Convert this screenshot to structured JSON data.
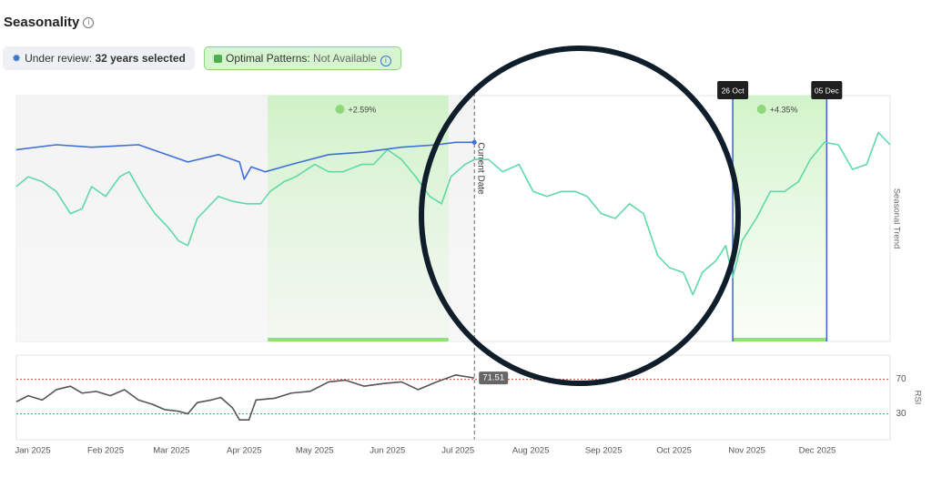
{
  "header": {
    "title": "Seasonality",
    "review_label": "Under review:",
    "review_value": "32 years selected",
    "patterns_label": "Optimal Patterns:",
    "patterns_value": "Not Available"
  },
  "chart_data": [
    {
      "type": "line",
      "y_label": "Seasonal Trend",
      "xlim": [
        -7,
        365
      ],
      "ylim": [
        0,
        100
      ],
      "current_date": 188,
      "current_date_label": "Current Date",
      "patterns": [
        {
          "start": 100,
          "end": 177,
          "change": 2.59,
          "change_label": "+2.59%"
        },
        {
          "start": 298,
          "end": 338,
          "start_label": "26 Oct",
          "end_label": "05 Dec",
          "change": 4.35,
          "change_label": "+4.35%"
        }
      ],
      "series": [
        {
          "color": "#5fd9a8",
          "x": [
            -7,
            -2,
            4,
            10,
            16,
            21,
            25,
            31,
            37,
            41,
            47,
            52,
            58,
            62,
            66,
            70,
            74,
            79,
            85,
            91,
            97,
            101,
            107,
            112,
            120,
            126,
            132,
            140,
            145,
            151,
            157,
            163,
            169,
            174,
            178,
            184,
            188,
            194,
            200,
            207,
            213,
            219,
            225,
            231,
            236,
            242,
            248,
            254,
            260,
            266,
            271,
            277,
            281,
            285,
            291,
            295,
            298,
            302,
            308,
            314,
            320,
            326,
            331,
            337,
            343,
            349,
            355,
            360,
            365
          ],
          "values": [
            63,
            67,
            65,
            61,
            52,
            54,
            63,
            59,
            67,
            69,
            59,
            52,
            46,
            41,
            39,
            50,
            54,
            59,
            57,
            56,
            56,
            61,
            65,
            67,
            72,
            69,
            69,
            72,
            72,
            78,
            74,
            67,
            59,
            56,
            67,
            72,
            74,
            74,
            69,
            72,
            61,
            59,
            61,
            61,
            59,
            52,
            50,
            56,
            52,
            35,
            30,
            28,
            19,
            28,
            33,
            39,
            26,
            41,
            50,
            61,
            61,
            65,
            74,
            81,
            80,
            70,
            72,
            85,
            80
          ]
        },
        {
          "color": "#3f6fd8",
          "x": [
            -7,
            10,
            25,
            45,
            66,
            79,
            88,
            90,
            93,
            99,
            110,
            126,
            141,
            157,
            172,
            180,
            188
          ],
          "values": [
            78,
            80,
            79,
            80,
            73,
            76,
            73,
            66,
            71,
            69,
            72,
            76,
            77,
            79,
            80,
            81,
            81
          ]
        }
      ]
    },
    {
      "type": "line",
      "y_label": "RSI",
      "xlim": [
        -7,
        365
      ],
      "ylim": [
        0,
        98
      ],
      "yticks": [
        30,
        70
      ],
      "tick_colors": [
        "#3cb44b",
        "#e0403a"
      ],
      "xticks": [
        {
          "value": 0,
          "label": "Jan 2025"
        },
        {
          "value": 31,
          "label": "Feb 2025"
        },
        {
          "value": 59,
          "label": "Mar 2025"
        },
        {
          "value": 90,
          "label": "Apr 2025"
        },
        {
          "value": 120,
          "label": "May 2025"
        },
        {
          "value": 151,
          "label": "Jun 2025"
        },
        {
          "value": 181,
          "label": "Jul 2025"
        },
        {
          "value": 212,
          "label": "Aug 2025"
        },
        {
          "value": 243,
          "label": "Sep 2025"
        },
        {
          "value": 273,
          "label": "Oct 2025"
        },
        {
          "value": 304,
          "label": "Nov 2025"
        },
        {
          "value": 334,
          "label": "Dec 2025"
        }
      ],
      "series": [
        {
          "color": "#555555",
          "x": [
            -7,
            -2,
            4,
            10,
            16,
            21,
            27,
            33,
            39,
            45,
            51,
            56,
            62,
            66,
            70,
            76,
            80,
            85,
            88,
            92,
            95,
            103,
            110,
            118,
            126,
            133,
            141,
            149,
            157,
            164,
            172,
            180,
            188
          ],
          "values": [
            44,
            51,
            46,
            58,
            62,
            54,
            56,
            51,
            58,
            46,
            41,
            35,
            33,
            30,
            43,
            46,
            49,
            37,
            23,
            23,
            46,
            48,
            54,
            56,
            67,
            69,
            62,
            65,
            67,
            58,
            67,
            75,
            71.51
          ],
          "value_labels": [
            null,
            null,
            null,
            null,
            null,
            null,
            null,
            null,
            null,
            null,
            null,
            null,
            null,
            null,
            null,
            null,
            null,
            null,
            null,
            null,
            null,
            null,
            null,
            null,
            null,
            null,
            null,
            null,
            null,
            null,
            null,
            null,
            "71.51"
          ]
        }
      ]
    }
  ]
}
